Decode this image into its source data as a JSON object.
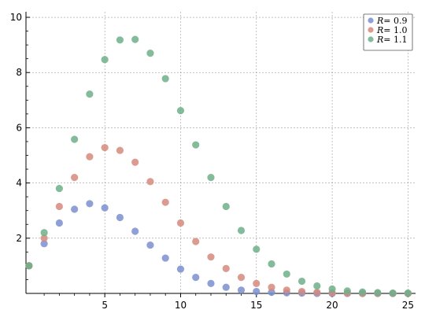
{
  "chart_data": {
    "type": "scatter",
    "x": [
      0,
      1,
      2,
      3,
      4,
      5,
      6,
      7,
      8,
      9,
      10,
      11,
      12,
      13,
      14,
      15,
      16,
      17,
      18,
      19,
      20,
      21,
      22,
      23,
      24,
      25
    ],
    "series": [
      {
        "name": "R = 0.9",
        "name_prefix": "R",
        "name_value": "= 0.9",
        "color": "#7b8fcf",
        "values": [
          1.0,
          1.8,
          2.55,
          3.05,
          3.25,
          3.1,
          2.75,
          2.25,
          1.75,
          1.28,
          0.88,
          0.58,
          0.36,
          0.22,
          0.12,
          0.07,
          0.04,
          0.02,
          0.01,
          0.0,
          0.0,
          0.0,
          0.0,
          0.0,
          0.0,
          0.0
        ]
      },
      {
        "name": "R = 1.0",
        "name_prefix": "R",
        "name_value": "= 1.0",
        "color": "#d68a7c",
        "values": [
          1.0,
          2.0,
          3.15,
          4.2,
          4.95,
          5.28,
          5.18,
          4.75,
          4.05,
          3.3,
          2.55,
          1.88,
          1.32,
          0.9,
          0.58,
          0.36,
          0.22,
          0.12,
          0.07,
          0.04,
          0.02,
          0.01,
          0.0,
          0.0,
          0.0,
          0.0
        ]
      },
      {
        "name": "R = 1.1",
        "name_prefix": "R",
        "name_value": "= 1.1",
        "color": "#6fb08a",
        "values": [
          1.0,
          2.2,
          3.8,
          5.58,
          7.22,
          8.47,
          9.18,
          9.2,
          8.7,
          7.78,
          6.62,
          5.38,
          4.2,
          3.15,
          2.28,
          1.6,
          1.07,
          0.7,
          0.44,
          0.27,
          0.16,
          0.09,
          0.05,
          0.03,
          0.01,
          0.01
        ]
      }
    ],
    "xlim": [
      -0.2,
      25.5
    ],
    "ylim": [
      0,
      10.2
    ],
    "xticks": [
      5,
      10,
      15,
      20,
      25
    ],
    "yticks": [
      2,
      4,
      6,
      8,
      10
    ],
    "grid": true,
    "legend": "top-right",
    "title": "",
    "xlabel": "",
    "ylabel": ""
  }
}
